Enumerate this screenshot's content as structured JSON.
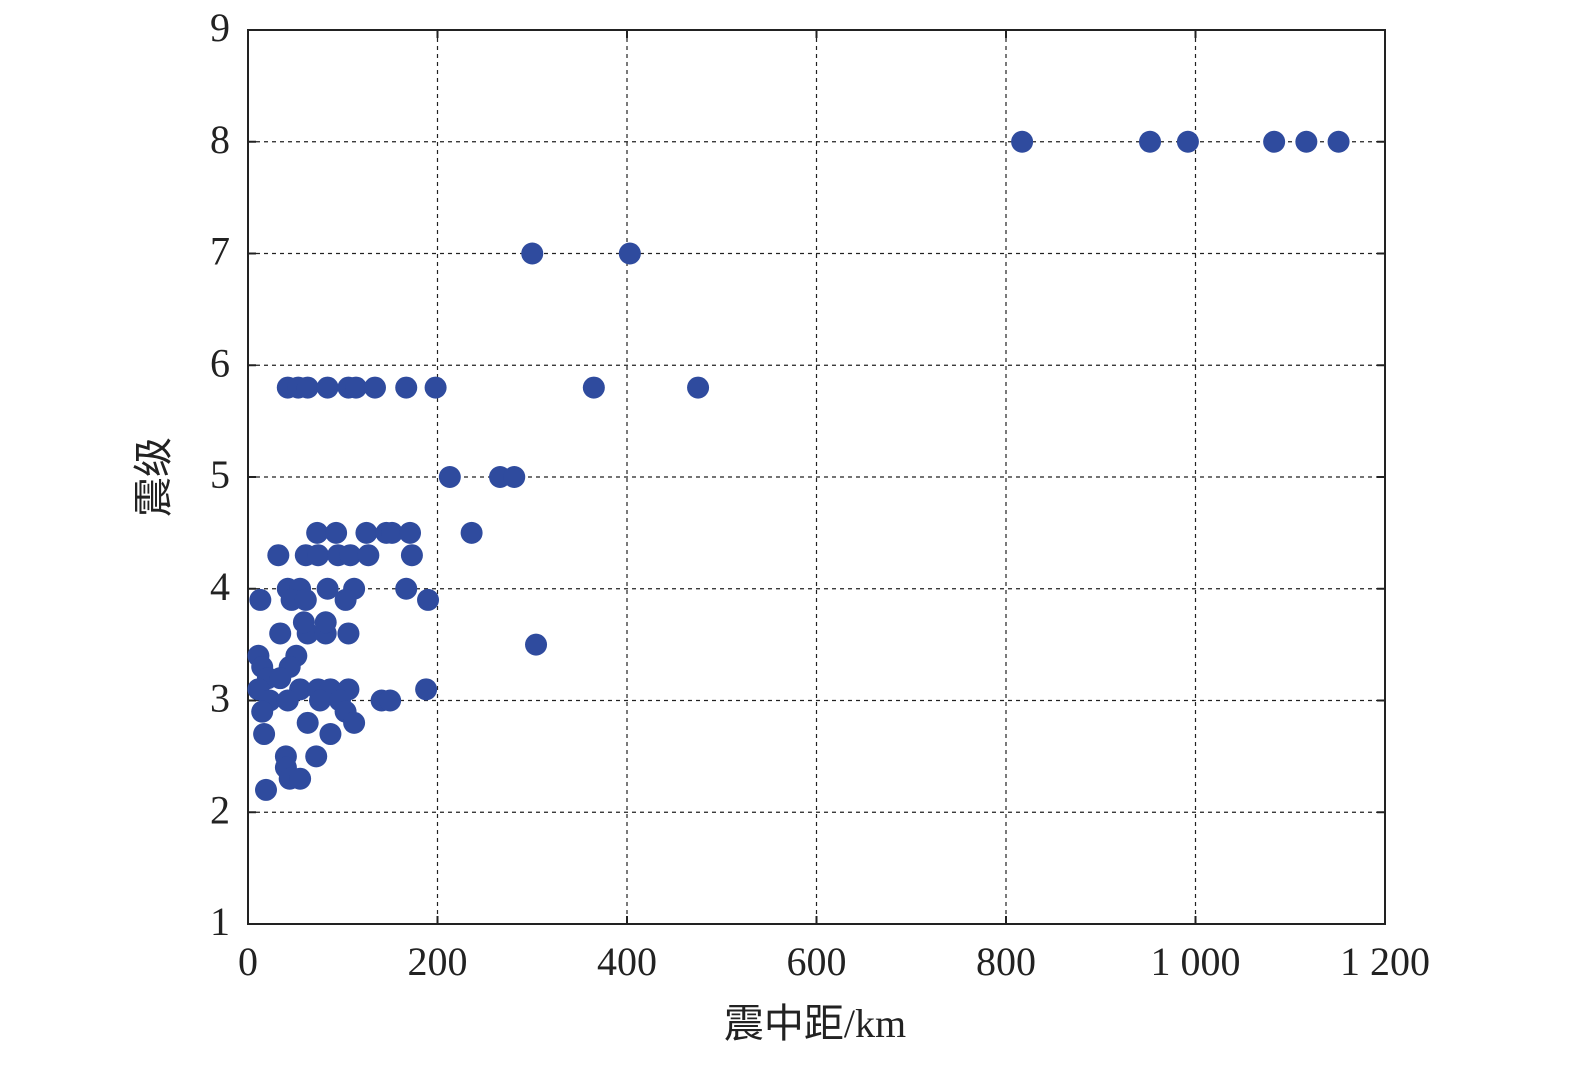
{
  "chart_data": {
    "type": "scatter",
    "xlabel": "震中距/km",
    "ylabel": "震级",
    "color": "#2f4b9e",
    "grid": true,
    "xlim": [
      0,
      1200
    ],
    "ylim": [
      1,
      9
    ],
    "xticks": [
      0,
      200,
      400,
      600,
      800,
      {
        "value": 1000,
        "label": "1 000"
      },
      {
        "value": 1200,
        "label": "1 200"
      }
    ],
    "yticks": [
      1,
      2,
      3,
      4,
      5,
      6,
      7,
      8,
      9
    ],
    "x": [
      817,
      952,
      992,
      1083,
      1117,
      1151,
      300,
      403,
      42,
      53,
      63,
      84,
      106,
      114,
      134,
      167,
      198,
      365,
      475,
      213,
      266,
      281,
      73,
      93,
      125,
      146,
      152,
      171,
      236,
      32,
      61,
      74,
      95,
      108,
      127,
      173,
      42,
      55,
      84,
      112,
      167,
      13,
      46,
      61,
      103,
      190,
      34,
      63,
      82,
      106,
      59,
      82,
      304,
      11,
      51,
      15,
      44,
      21,
      34,
      11,
      55,
      74,
      87,
      106,
      188,
      23,
      42,
      76,
      97,
      141,
      150,
      15,
      103,
      63,
      112,
      17,
      87,
      40,
      72,
      40,
      44,
      55,
      19
    ],
    "values": [
      8,
      8,
      8,
      8,
      8,
      8,
      7,
      7,
      5.8,
      5.8,
      5.8,
      5.8,
      5.8,
      5.8,
      5.8,
      5.8,
      5.8,
      5.8,
      5.8,
      5,
      5,
      5,
      4.5,
      4.5,
      4.5,
      4.5,
      4.5,
      4.5,
      4.5,
      4.3,
      4.3,
      4.3,
      4.3,
      4.3,
      4.3,
      4.3,
      4,
      4,
      4,
      4,
      4,
      3.9,
      3.9,
      3.9,
      3.9,
      3.9,
      3.6,
      3.6,
      3.6,
      3.6,
      3.7,
      3.7,
      3.5,
      3.4,
      3.4,
      3.3,
      3.3,
      3.2,
      3.2,
      3.1,
      3.1,
      3.1,
      3.1,
      3.1,
      3.1,
      3,
      3,
      3,
      3,
      3,
      3,
      2.9,
      2.9,
      2.8,
      2.8,
      2.7,
      2.7,
      2.5,
      2.5,
      2.4,
      2.3,
      2.3,
      2.2
    ]
  }
}
